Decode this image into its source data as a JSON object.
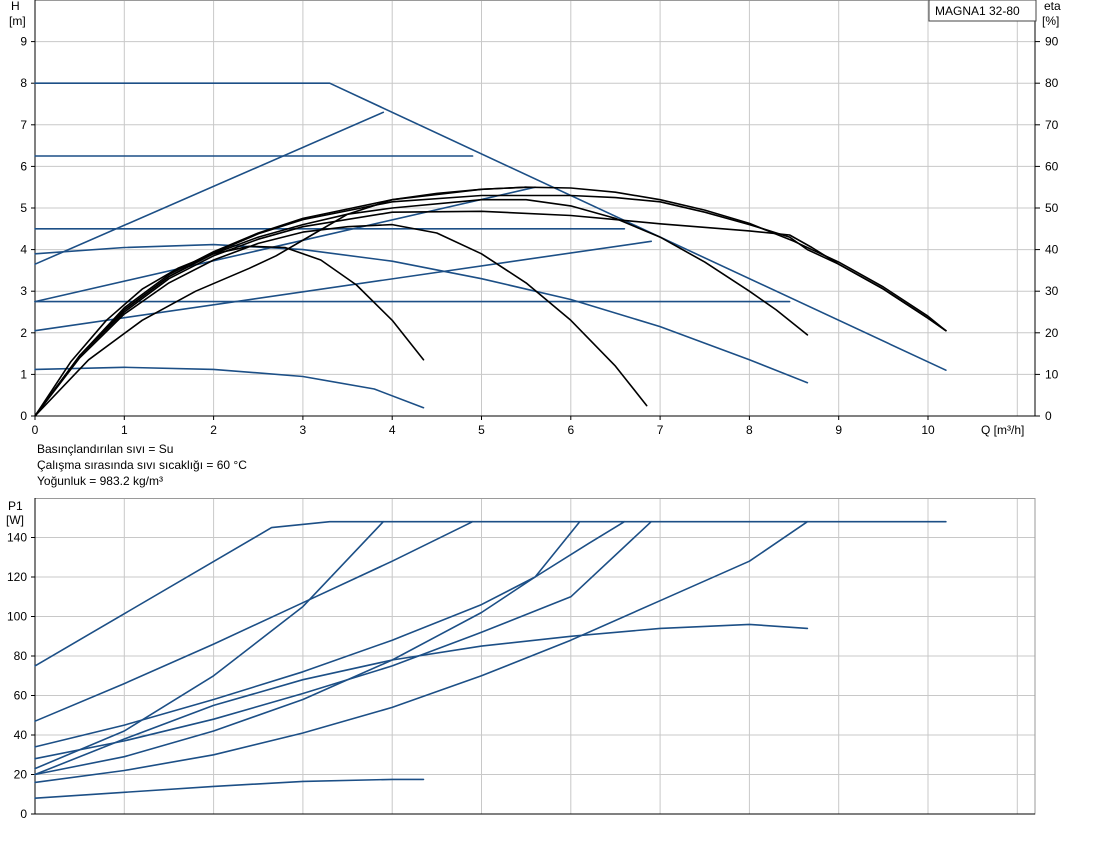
{
  "colors": {
    "pump_curve": "#1c4f86",
    "efficiency_curve": "#000000",
    "grid": "#c8c8c8",
    "axis": "#000000"
  },
  "fluid_info": {
    "line1": "Basınçlandırılan sıvı = Su",
    "line2": "Çalışma sırasında sıvı sıcaklığı = 60 °C",
    "line3": "Yoğunluk = 983.2 kg/m³"
  },
  "chart_data": [
    {
      "id": "head",
      "type": "line",
      "title": "MAGNA1 32-80",
      "ylabel": "H",
      "yunit": "[m]",
      "y2label": "eta",
      "y2unit": "[%]",
      "xlabel": "Q [m³/h]",
      "xlim": [
        0,
        11
      ],
      "ylim": [
        0,
        10
      ],
      "y2lim": [
        0,
        100
      ],
      "xticks": [
        0,
        1,
        2,
        3,
        4,
        5,
        6,
        7,
        8,
        9,
        10
      ],
      "yticks": [
        0,
        1,
        2,
        3,
        4,
        5,
        6,
        7,
        8,
        9
      ],
      "y2ticks": [
        0,
        10,
        20,
        30,
        40,
        50,
        60,
        70,
        80,
        90
      ],
      "grid": true,
      "series": [
        {
          "kind": "pump",
          "points": [
            [
              0,
              8
            ],
            [
              3.3,
              8
            ],
            [
              10.2,
              1.1
            ]
          ]
        },
        {
          "kind": "pump",
          "points": [
            [
              0,
              6.25
            ],
            [
              4.9,
              6.25
            ]
          ]
        },
        {
          "kind": "pump",
          "points": [
            [
              0,
              4.5
            ],
            [
              6.6,
              4.5
            ]
          ]
        },
        {
          "kind": "pump",
          "points": [
            [
              0,
              2.75
            ],
            [
              8.45,
              2.75
            ]
          ]
        },
        {
          "kind": "pump",
          "points": [
            [
              0,
              3.9
            ],
            [
              1,
              4.05
            ],
            [
              2,
              4.12
            ],
            [
              3,
              4.0
            ],
            [
              4,
              3.72
            ],
            [
              5,
              3.3
            ],
            [
              6,
              2.8
            ],
            [
              7,
              2.15
            ],
            [
              8,
              1.35
            ],
            [
              8.65,
              0.8
            ]
          ]
        },
        {
          "kind": "pump",
          "points": [
            [
              0,
              1.12
            ],
            [
              1,
              1.17
            ],
            [
              2,
              1.12
            ],
            [
              3,
              0.95
            ],
            [
              3.8,
              0.65
            ],
            [
              4.35,
              0.2
            ]
          ]
        },
        {
          "kind": "pump",
          "points": [
            [
              0,
              3.65
            ],
            [
              3.9,
              7.3
            ]
          ]
        },
        {
          "kind": "pump",
          "points": [
            [
              0,
              2.75
            ],
            [
              5.6,
              5.5
            ]
          ]
        },
        {
          "kind": "pump",
          "points": [
            [
              0,
              2.05
            ],
            [
              6.9,
              4.2
            ]
          ]
        },
        {
          "kind": "efficiency",
          "points": [
            [
              0,
              0
            ],
            [
              0.5,
              1.45
            ],
            [
              1,
              2.6
            ],
            [
              1.5,
              3.4
            ],
            [
              2,
              3.95
            ],
            [
              2.5,
              4.4
            ],
            [
              3,
              4.75
            ],
            [
              4,
              5.2
            ],
            [
              5,
              5.45
            ],
            [
              5.5,
              5.5
            ],
            [
              6,
              5.48
            ],
            [
              6.5,
              5.38
            ],
            [
              7,
              5.2
            ],
            [
              7.5,
              4.95
            ],
            [
              8,
              4.63
            ],
            [
              8.5,
              4.2
            ],
            [
              9,
              3.7
            ],
            [
              9.5,
              3.1
            ],
            [
              10,
              2.4
            ],
            [
              10.2,
              2.05
            ]
          ]
        },
        {
          "kind": "efficiency",
          "points": [
            [
              0,
              0
            ],
            [
              0.5,
              1.45
            ],
            [
              1,
              2.55
            ],
            [
              1.5,
              3.35
            ],
            [
              2,
              3.92
            ],
            [
              2.5,
              4.38
            ],
            [
              3,
              4.72
            ],
            [
              4,
              5.15
            ],
            [
              5,
              5.3
            ],
            [
              6,
              5.3
            ],
            [
              6.5,
              5.25
            ],
            [
              7,
              5.15
            ],
            [
              7.5,
              4.9
            ],
            [
              8,
              4.6
            ],
            [
              8.45,
              4.3
            ],
            [
              8.65,
              4.0
            ],
            [
              9,
              3.65
            ],
            [
              9.5,
              3.05
            ],
            [
              10,
              2.35
            ],
            [
              10.2,
              2.05
            ]
          ]
        },
        {
          "kind": "efficiency",
          "points": [
            [
              0,
              0
            ],
            [
              0.5,
              1.45
            ],
            [
              1,
              2.5
            ],
            [
              1.5,
              3.3
            ],
            [
              2,
              3.85
            ],
            [
              2.5,
              4.25
            ],
            [
              3,
              4.55
            ],
            [
              4,
              4.9
            ],
            [
              5,
              4.92
            ],
            [
              6,
              4.82
            ],
            [
              6.5,
              4.72
            ],
            [
              7,
              4.62
            ],
            [
              8,
              4.45
            ],
            [
              8.45,
              4.35
            ],
            [
              8.7,
              4.05
            ],
            [
              9,
              3.65
            ],
            [
              9.5,
              3.05
            ],
            [
              10,
              2.35
            ],
            [
              10.2,
              2.05
            ]
          ]
        },
        {
          "kind": "efficiency",
          "points": [
            [
              0,
              0
            ],
            [
              0.5,
              1.45
            ],
            [
              1,
              2.55
            ],
            [
              1.5,
              3.35
            ],
            [
              2,
              3.9
            ],
            [
              2.5,
              4.3
            ],
            [
              3,
              4.6
            ],
            [
              3.5,
              4.85
            ],
            [
              4,
              5.0
            ],
            [
              5,
              5.2
            ],
            [
              5.5,
              5.2
            ],
            [
              6,
              5.05
            ],
            [
              6.5,
              4.75
            ],
            [
              7,
              4.3
            ],
            [
              7.5,
              3.7
            ],
            [
              8,
              3.0
            ],
            [
              8.3,
              2.55
            ],
            [
              8.65,
              1.95
            ]
          ]
        },
        {
          "kind": "efficiency",
          "points": [
            [
              0,
              0
            ],
            [
              0.5,
              1.4
            ],
            [
              1,
              2.45
            ],
            [
              1.5,
              3.2
            ],
            [
              2,
              3.75
            ],
            [
              2.5,
              4.15
            ],
            [
              3,
              4.42
            ],
            [
              3.5,
              4.55
            ],
            [
              4,
              4.6
            ],
            [
              4.5,
              4.4
            ],
            [
              5,
              3.9
            ],
            [
              5.5,
              3.2
            ],
            [
              6,
              2.3
            ],
            [
              6.5,
              1.2
            ],
            [
              6.85,
              0.25
            ]
          ]
        },
        {
          "kind": "efficiency",
          "points": [
            [
              0,
              0
            ],
            [
              0.4,
              1.3
            ],
            [
              0.8,
              2.3
            ],
            [
              1.2,
              3.05
            ],
            [
              1.6,
              3.55
            ],
            [
              2,
              3.9
            ],
            [
              2.4,
              4.08
            ],
            [
              2.8,
              4.05
            ],
            [
              3.2,
              3.75
            ],
            [
              3.6,
              3.15
            ],
            [
              4,
              2.3
            ],
            [
              4.35,
              1.35
            ]
          ]
        },
        {
          "kind": "efficiency",
          "points": [
            [
              0,
              0
            ],
            [
              0.6,
              1.35
            ],
            [
              1.2,
              2.3
            ],
            [
              1.8,
              3.0
            ],
            [
              2.4,
              3.55
            ],
            [
              2.7,
              3.85
            ],
            [
              3.1,
              4.35
            ],
            [
              3.5,
              4.85
            ],
            [
              4,
              5.2
            ],
            [
              4.5,
              5.35
            ],
            [
              5,
              5.45
            ],
            [
              5.5,
              5.5
            ]
          ]
        }
      ]
    },
    {
      "id": "power",
      "type": "line",
      "ylabel": "P1",
      "yunit": "[W]",
      "xlim": [
        0,
        11
      ],
      "ylim": [
        0,
        160
      ],
      "xticks": [
        0,
        1,
        2,
        3,
        4,
        5,
        6,
        7,
        8,
        9,
        10
      ],
      "yticks": [
        0,
        20,
        40,
        60,
        80,
        100,
        120,
        140
      ],
      "grid": true,
      "series": [
        {
          "kind": "pump",
          "points": [
            [
              0,
              75
            ],
            [
              2.65,
              145
            ],
            [
              3.3,
              148
            ],
            [
              10.2,
              148
            ]
          ]
        },
        {
          "kind": "pump",
          "points": [
            [
              0,
              47
            ],
            [
              1,
              66
            ],
            [
              2,
              86
            ],
            [
              3,
              107
            ],
            [
              4,
              128
            ],
            [
              4.9,
              148
            ]
          ]
        },
        {
          "kind": "pump",
          "points": [
            [
              0,
              23
            ],
            [
              1,
              42
            ],
            [
              2,
              70
            ],
            [
              3,
              105
            ],
            [
              3.9,
              148
            ]
          ]
        },
        {
          "kind": "pump",
          "points": [
            [
              0,
              34
            ],
            [
              1,
              45
            ],
            [
              2,
              58
            ],
            [
              3,
              72
            ],
            [
              4,
              88
            ],
            [
              5,
              106
            ],
            [
              5.6,
              120
            ],
            [
              6.2,
              137
            ],
            [
              6.6,
              148
            ]
          ]
        },
        {
          "kind": "pump",
          "points": [
            [
              0,
              20
            ],
            [
              1,
              29
            ],
            [
              2,
              42
            ],
            [
              3,
              58
            ],
            [
              4,
              78
            ],
            [
              5,
              102
            ],
            [
              5.6,
              120
            ],
            [
              6.1,
              148
            ]
          ]
        },
        {
          "kind": "pump",
          "points": [
            [
              0,
              28
            ],
            [
              1,
              37
            ],
            [
              2,
              48
            ],
            [
              3,
              61
            ],
            [
              4,
              75
            ],
            [
              5,
              92
            ],
            [
              6,
              110
            ],
            [
              6.9,
              148
            ]
          ]
        },
        {
          "kind": "pump",
          "points": [
            [
              0,
              16
            ],
            [
              1,
              22
            ],
            [
              2,
              30
            ],
            [
              3,
              41
            ],
            [
              4,
              54
            ],
            [
              5,
              70
            ],
            [
              6,
              88
            ],
            [
              7,
              108
            ],
            [
              8,
              128
            ],
            [
              8.65,
              148
            ]
          ]
        },
        {
          "kind": "pump",
          "points": [
            [
              0,
              20
            ],
            [
              1,
              38
            ],
            [
              2,
              55
            ],
            [
              3,
              68
            ],
            [
              4,
              78
            ],
            [
              5,
              85
            ],
            [
              6,
              90
            ],
            [
              7,
              94
            ],
            [
              8,
              96
            ],
            [
              8.65,
              94
            ]
          ]
        },
        {
          "kind": "pump",
          "points": [
            [
              0,
              8
            ],
            [
              1,
              11
            ],
            [
              2,
              14
            ],
            [
              3,
              16.5
            ],
            [
              4,
              17.5
            ],
            [
              4.35,
              17.5
            ]
          ]
        }
      ]
    }
  ]
}
